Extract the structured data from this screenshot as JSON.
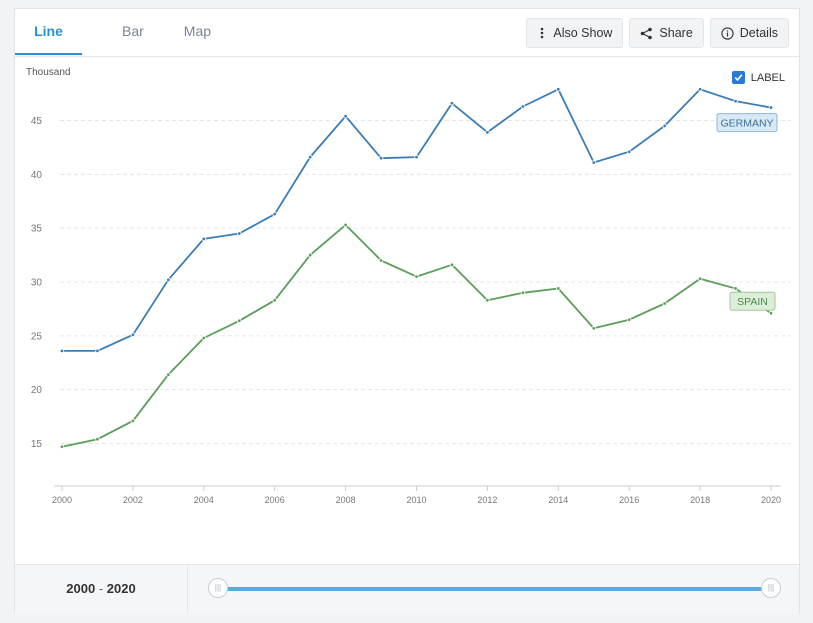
{
  "tabs": [
    {
      "label": "Line",
      "active": true
    },
    {
      "label": "Bar",
      "active": false
    },
    {
      "label": "Map",
      "active": false
    }
  ],
  "actions": {
    "also_show": "Also Show",
    "share": "Share",
    "details": "Details"
  },
  "label_toggle": {
    "label": "LABEL",
    "checked": true
  },
  "range": {
    "start": "2000",
    "sep": "-",
    "end": "2020"
  },
  "chart_data": {
    "type": "line",
    "ylabel": "Thousand",
    "ylim": [
      10.5,
      48.5
    ],
    "yticks": [
      15,
      20,
      25,
      30,
      35,
      40,
      45
    ],
    "xticks": [
      2000,
      2002,
      2004,
      2006,
      2008,
      2010,
      2012,
      2014,
      2016,
      2018,
      2020
    ],
    "grid": true,
    "x": [
      2000,
      2001,
      2002,
      2003,
      2004,
      2005,
      2006,
      2007,
      2008,
      2009,
      2010,
      2011,
      2012,
      2013,
      2014,
      2015,
      2016,
      2017,
      2018,
      2019,
      2020
    ],
    "series": [
      {
        "name": "GERMANY",
        "color": "#3a7db5",
        "values": [
          23.6,
          23.6,
          25.1,
          30.2,
          34.0,
          34.5,
          36.3,
          41.6,
          45.4,
          41.5,
          41.6,
          46.6,
          43.9,
          46.3,
          47.9,
          41.1,
          42.1,
          44.5,
          47.9,
          46.8,
          46.2
        ]
      },
      {
        "name": "SPAIN",
        "color": "#5a9e5a",
        "values": [
          14.7,
          15.4,
          17.1,
          21.4,
          24.8,
          26.4,
          28.3,
          32.5,
          35.3,
          32.0,
          30.5,
          31.6,
          28.3,
          29.0,
          29.4,
          25.7,
          26.5,
          28.0,
          30.3,
          29.4,
          27.1
        ]
      }
    ]
  }
}
